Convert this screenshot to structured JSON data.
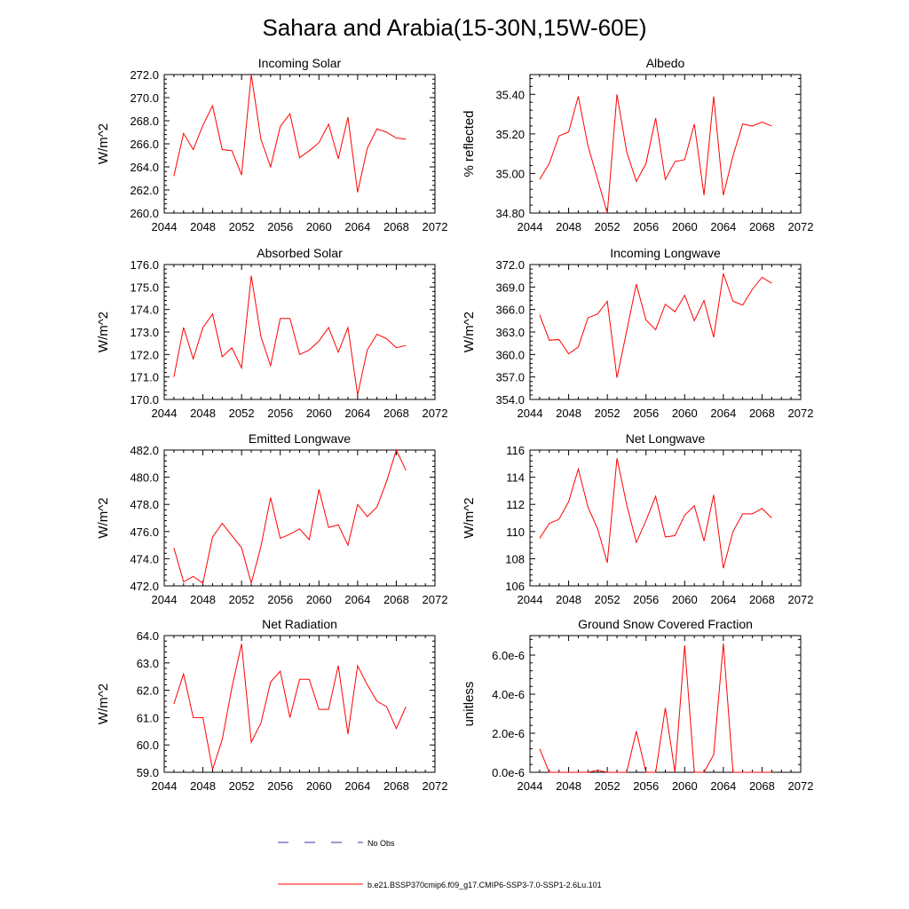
{
  "figure": {
    "title": "Sahara and Arabia(15-30N,15W-60E)"
  },
  "legend": {
    "items": [
      {
        "label": "No Obs",
        "color": "#3333aa",
        "dash": true
      },
      {
        "label": "b.e21.BSSP370cmip6.f09_g17.CMIP6-SSP3-7.0-SSP1-2.6Lu.101",
        "color": "#ff0000",
        "dash": false
      }
    ]
  },
  "chart_data": [
    {
      "type": "line",
      "title": "Incoming Solar",
      "ylabel": "W/m^2",
      "xlim": [
        2044,
        2072
      ],
      "ylim": [
        260,
        272
      ],
      "xticks": [
        "2044",
        "2048",
        "2052",
        "2056",
        "2060",
        "2064",
        "2068",
        "2072"
      ],
      "yticks": [
        "260.0",
        "262.0",
        "264.0",
        "266.0",
        "268.0",
        "270.0",
        "272.0"
      ],
      "x": [
        2045,
        2046,
        2047,
        2048,
        2049,
        2050,
        2051,
        2052,
        2053,
        2054,
        2055,
        2056,
        2057,
        2058,
        2059,
        2060,
        2061,
        2062,
        2063,
        2064,
        2065,
        2066,
        2067,
        2068,
        2069
      ],
      "series": [
        {
          "color": "#ff0000",
          "values": [
            263.2,
            266.9,
            265.5,
            267.6,
            269.3,
            265.5,
            265.4,
            263.3,
            272.0,
            266.4,
            264.0,
            267.5,
            268.6,
            264.8,
            265.4,
            266.1,
            267.7,
            264.7,
            268.3,
            261.8,
            265.6,
            267.3,
            267.0,
            266.5,
            266.4
          ]
        }
      ]
    },
    {
      "type": "line",
      "title": "Albedo",
      "ylabel": "% reflected",
      "xlim": [
        2044,
        2072
      ],
      "ylim": [
        34.8,
        35.5
      ],
      "xticks": [
        "2044",
        "2048",
        "2052",
        "2056",
        "2060",
        "2064",
        "2068",
        "2072"
      ],
      "yticks": [
        "34.80",
        "35.00",
        "35.20",
        "35.40"
      ],
      "x": [
        2045,
        2046,
        2047,
        2048,
        2049,
        2050,
        2051,
        2052,
        2053,
        2054,
        2055,
        2056,
        2057,
        2058,
        2059,
        2060,
        2061,
        2062,
        2063,
        2064,
        2065,
        2066,
        2067,
        2068,
        2069
      ],
      "series": [
        {
          "color": "#ff0000",
          "values": [
            34.97,
            35.05,
            35.19,
            35.21,
            35.39,
            35.14,
            34.97,
            34.8,
            35.4,
            35.11,
            34.96,
            35.05,
            35.28,
            34.97,
            35.06,
            35.07,
            35.25,
            34.89,
            35.39,
            34.89,
            35.09,
            35.25,
            35.24,
            35.26,
            35.24
          ]
        }
      ]
    },
    {
      "type": "line",
      "title": "Absorbed Solar",
      "ylabel": "W/m^2",
      "xlim": [
        2044,
        2072
      ],
      "ylim": [
        170,
        176
      ],
      "xticks": [
        "2044",
        "2048",
        "2052",
        "2056",
        "2060",
        "2064",
        "2068",
        "2072"
      ],
      "yticks": [
        "170.0",
        "171.0",
        "172.0",
        "173.0",
        "174.0",
        "175.0",
        "176.0"
      ],
      "x": [
        2045,
        2046,
        2047,
        2048,
        2049,
        2050,
        2051,
        2052,
        2053,
        2054,
        2055,
        2056,
        2057,
        2058,
        2059,
        2060,
        2061,
        2062,
        2063,
        2064,
        2065,
        2066,
        2067,
        2068,
        2069
      ],
      "series": [
        {
          "color": "#ff0000",
          "values": [
            171.0,
            173.2,
            171.8,
            173.2,
            173.8,
            171.9,
            172.3,
            171.4,
            175.5,
            172.8,
            171.5,
            173.6,
            173.6,
            172.0,
            172.2,
            172.6,
            173.2,
            172.1,
            173.2,
            170.2,
            172.2,
            172.9,
            172.7,
            172.3,
            172.4
          ]
        }
      ]
    },
    {
      "type": "line",
      "title": "Incoming Longwave",
      "ylabel": "W/m^2",
      "xlim": [
        2044,
        2072
      ],
      "ylim": [
        354,
        372
      ],
      "xticks": [
        "2044",
        "2048",
        "2052",
        "2056",
        "2060",
        "2064",
        "2068",
        "2072"
      ],
      "yticks": [
        "354.0",
        "357.0",
        "360.0",
        "363.0",
        "366.0",
        "369.0",
        "372.0"
      ],
      "x": [
        2045,
        2046,
        2047,
        2048,
        2049,
        2050,
        2051,
        2052,
        2053,
        2054,
        2055,
        2056,
        2057,
        2058,
        2059,
        2060,
        2061,
        2062,
        2063,
        2064,
        2065,
        2066,
        2067,
        2068,
        2069
      ],
      "series": [
        {
          "color": "#ff0000",
          "values": [
            365.3,
            361.9,
            362.0,
            360.1,
            361.0,
            364.9,
            365.4,
            367.1,
            356.9,
            363.1,
            369.4,
            364.6,
            363.3,
            366.7,
            365.7,
            367.9,
            364.5,
            367.2,
            362.3,
            370.8,
            367.1,
            366.6,
            368.7,
            370.3,
            369.5
          ]
        }
      ]
    },
    {
      "type": "line",
      "title": "Emitted Longwave",
      "ylabel": "W/m^2",
      "xlim": [
        2044,
        2072
      ],
      "ylim": [
        472,
        482
      ],
      "xticks": [
        "2044",
        "2048",
        "2052",
        "2056",
        "2060",
        "2064",
        "2068",
        "2072"
      ],
      "yticks": [
        "472.0",
        "474.0",
        "476.0",
        "478.0",
        "480.0",
        "482.0"
      ],
      "x": [
        2045,
        2046,
        2047,
        2048,
        2049,
        2050,
        2051,
        2052,
        2053,
        2054,
        2055,
        2056,
        2057,
        2058,
        2059,
        2060,
        2061,
        2062,
        2063,
        2064,
        2065,
        2066,
        2067,
        2068,
        2069
      ],
      "series": [
        {
          "color": "#ff0000",
          "values": [
            474.8,
            472.3,
            472.7,
            472.2,
            475.6,
            476.6,
            475.7,
            474.8,
            472.2,
            474.9,
            478.5,
            475.5,
            475.8,
            476.2,
            475.4,
            479.1,
            476.3,
            476.5,
            475.0,
            478.0,
            477.1,
            477.8,
            479.7,
            482.0,
            480.5
          ]
        }
      ]
    },
    {
      "type": "line",
      "title": "Net Longwave",
      "ylabel": "W/m^2",
      "xlim": [
        2044,
        2072
      ],
      "ylim": [
        106,
        116
      ],
      "xticks": [
        "2044",
        "2048",
        "2052",
        "2056",
        "2060",
        "2064",
        "2068",
        "2072"
      ],
      "yticks": [
        "106",
        "108",
        "110",
        "112",
        "114",
        "116"
      ],
      "x": [
        2045,
        2046,
        2047,
        2048,
        2049,
        2050,
        2051,
        2052,
        2053,
        2054,
        2055,
        2056,
        2057,
        2058,
        2059,
        2060,
        2061,
        2062,
        2063,
        2064,
        2065,
        2066,
        2067,
        2068,
        2069
      ],
      "series": [
        {
          "color": "#ff0000",
          "values": [
            109.5,
            110.6,
            110.9,
            112.2,
            114.6,
            111.8,
            110.2,
            107.7,
            115.4,
            112.0,
            109.2,
            110.8,
            112.6,
            109.6,
            109.7,
            111.2,
            111.9,
            109.3,
            112.7,
            107.3,
            110.0,
            111.3,
            111.3,
            111.7,
            111.0
          ]
        }
      ]
    },
    {
      "type": "line",
      "title": "Net Radiation",
      "ylabel": "W/m^2",
      "xlim": [
        2044,
        2072
      ],
      "ylim": [
        59,
        64
      ],
      "xticks": [
        "2044",
        "2048",
        "2052",
        "2056",
        "2060",
        "2064",
        "2068",
        "2072"
      ],
      "yticks": [
        "59.0",
        "60.0",
        "61.0",
        "62.0",
        "63.0",
        "64.0"
      ],
      "x": [
        2045,
        2046,
        2047,
        2048,
        2049,
        2050,
        2051,
        2052,
        2053,
        2054,
        2055,
        2056,
        2057,
        2058,
        2059,
        2060,
        2061,
        2062,
        2063,
        2064,
        2065,
        2066,
        2067,
        2068,
        2069
      ],
      "series": [
        {
          "color": "#ff0000",
          "values": [
            61.5,
            62.6,
            61.0,
            61.0,
            59.1,
            60.2,
            62.1,
            63.7,
            60.1,
            60.8,
            62.3,
            62.7,
            61.0,
            62.4,
            62.4,
            61.3,
            61.3,
            62.9,
            60.4,
            62.9,
            62.2,
            61.6,
            61.4,
            60.6,
            61.4
          ]
        }
      ]
    },
    {
      "type": "line",
      "title": "Ground Snow Covered Fraction",
      "ylabel": "unitless",
      "xlim": [
        2044,
        2072
      ],
      "ylim": [
        0,
        7e-06
      ],
      "xticks": [
        "2044",
        "2048",
        "2052",
        "2056",
        "2060",
        "2064",
        "2068",
        "2072"
      ],
      "yticks": [
        "0.0e-6",
        "2.0e-6",
        "4.0e-6",
        "6.0e-6"
      ],
      "ytick_values": [
        0,
        2e-06,
        4e-06,
        6e-06
      ],
      "x": [
        2045,
        2046,
        2047,
        2048,
        2049,
        2050,
        2051,
        2052,
        2053,
        2054,
        2055,
        2056,
        2057,
        2058,
        2059,
        2060,
        2061,
        2062,
        2063,
        2064,
        2065,
        2066,
        2067,
        2068,
        2069
      ],
      "series": [
        {
          "color": "#ff0000",
          "values": [
            1.2e-06,
            0,
            0,
            0,
            0,
            0,
            1e-07,
            0,
            0,
            0,
            2.1e-06,
            0,
            0,
            3.3e-06,
            0,
            6.5e-06,
            0,
            0,
            9e-07,
            6.6e-06,
            0,
            0,
            0,
            0,
            0
          ]
        }
      ]
    }
  ]
}
